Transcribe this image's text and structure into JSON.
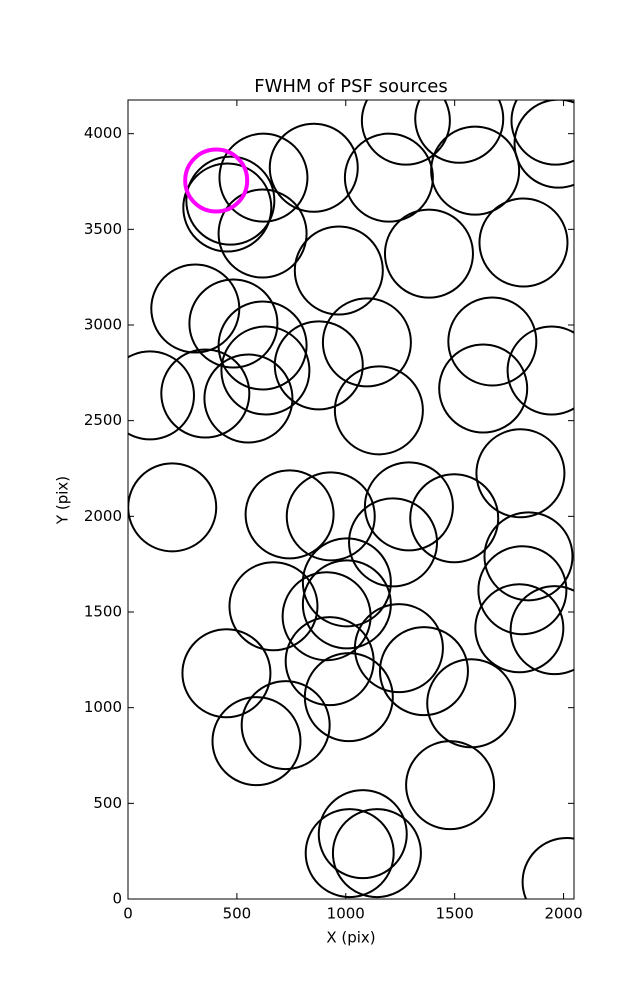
{
  "chart_data": {
    "type": "scatter",
    "title": "FWHM of PSF sources",
    "x_label": "X (pix)",
    "y_label": "Y (pix)",
    "xlim": [
      0,
      2048
    ],
    "ylim": [
      0,
      4176
    ],
    "xticks": [
      0,
      500,
      1000,
      1500,
      2000
    ],
    "yticks": [
      0,
      500,
      1000,
      1500,
      2000,
      2500,
      3000,
      3500,
      4000
    ],
    "series": [
      {
        "color": "#000000",
        "x": [
          1963,
          1276,
          1521,
          1977,
          853,
          622,
          1198,
          1594,
          456,
          470,
          618,
          1382,
          1816,
          968,
          309,
          484,
          618,
          1097,
          1673,
          876,
          631,
          101,
          355,
          553,
          1152,
          1631,
          1945,
          1802,
          203,
          742,
          931,
          1290,
          1498,
          1217,
          1839,
          1005,
          1811,
          668,
          1005,
          912,
          1797,
          1959,
          1244,
          1359,
          452,
          926,
          1014,
          1576,
          724,
          590,
          1479,
          1078,
          1018,
          1143,
          2014
        ],
        "values": [
          4068,
          4068,
          4078,
          3948,
          3822,
          3770,
          3770,
          3807,
          3614,
          3650,
          3478,
          3373,
          3431,
          3285,
          3086,
          3008,
          2893,
          2909,
          2914,
          2789,
          2762,
          2632,
          2642,
          2616,
          2554,
          2668,
          2762,
          2225,
          2047,
          2010,
          2000,
          2052,
          1990,
          1864,
          1791,
          1655,
          1614,
          1530,
          1540,
          1478,
          1415,
          1405,
          1311,
          1191,
          1180,
          1243,
          1055,
          1023,
          909,
          825,
          595,
          339,
          240,
          240,
          89
        ]
      },
      {
        "color": "#ff00ff",
        "x": [
          405
        ],
        "values": [
          3755
        ]
      }
    ]
  }
}
